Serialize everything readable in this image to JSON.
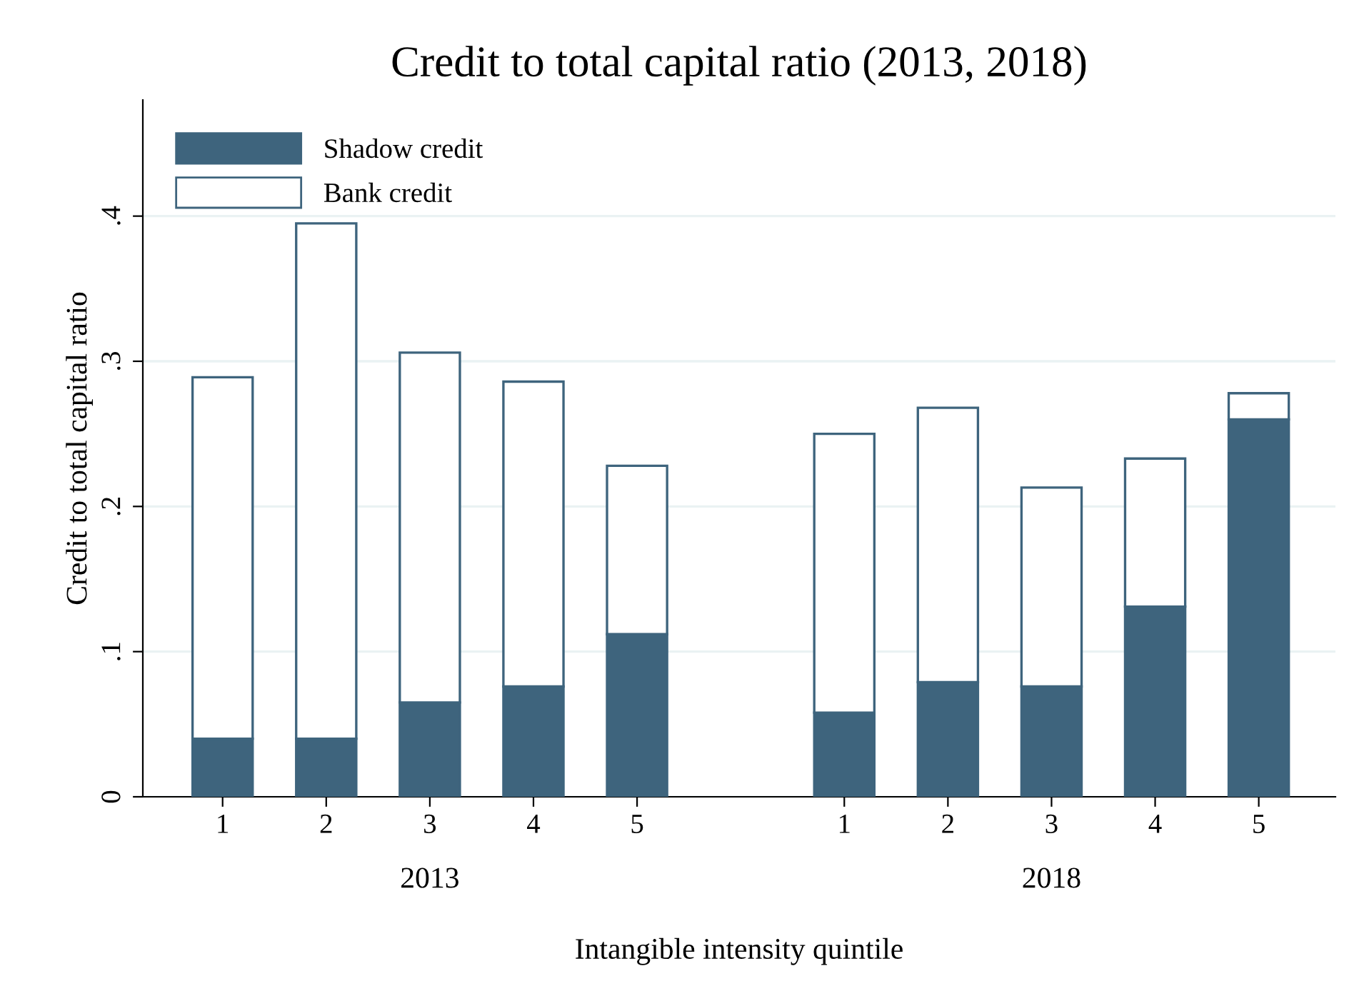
{
  "chart_data": {
    "type": "bar",
    "title": "Credit to total capital ratio (2013, 2018)",
    "xlabel": "Intangible intensity quintile",
    "ylabel": "Credit to total capital ratio",
    "categories": [
      "1",
      "2",
      "3",
      "4",
      "5",
      null,
      "1",
      "2",
      "3",
      "4",
      "5"
    ],
    "series": [
      {
        "name": "Shadow credit",
        "color": "#3e647d",
        "values": [
          0.04,
          0.04,
          0.065,
          0.076,
          0.112,
          null,
          0.058,
          0.079,
          0.076,
          0.131,
          0.26
        ]
      },
      {
        "name": "Bank credit",
        "color": "#ffffff",
        "values": [
          0.249,
          0.355,
          0.241,
          0.21,
          0.116,
          null,
          0.192,
          0.189,
          0.137,
          0.102,
          0.018
        ]
      }
    ],
    "stacked": true,
    "ylim": [
      0,
      0.48
    ],
    "yticks": [
      0,
      {
        "value": 0.1,
        "label": ".1"
      },
      {
        "value": 0.2,
        "label": ".2"
      },
      {
        "value": 0.3,
        "label": ".3"
      },
      {
        "value": 0.4,
        "label": ".4"
      }
    ],
    "grid": "y",
    "legend": "top left",
    "annotations": [
      "2013",
      "2018"
    ]
  }
}
